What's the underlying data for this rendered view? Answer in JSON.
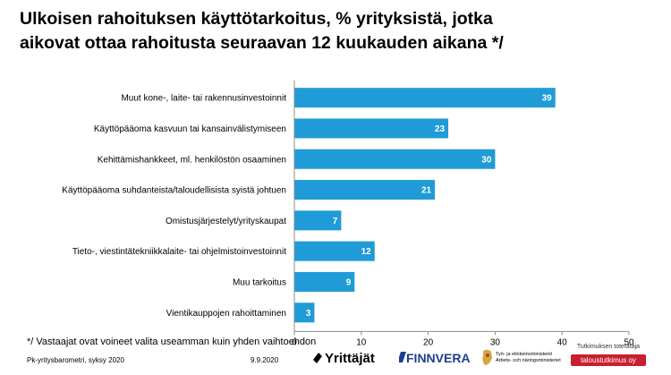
{
  "title_line1": "Ulkoisen rahoituksen käyttötarkoitus, % yrityksistä, jotka",
  "title_line2": "aikovat ottaa rahoitusta seuraavan 12 kuukauden aikana */",
  "chart_data": {
    "type": "bar",
    "orientation": "horizontal",
    "categories": [
      "Muut kone-, laite- tai rakennusinvestoinnit",
      "Käyttöpääoma kasvuun tai kansainvälistymiseen",
      "Kehittämishankkeet, ml. henkilöstön osaaminen",
      "Käyttöpääoma suhdanteista/taloudellisista syistä johtuen",
      "Omistusjärjestelyt/yrityskaupat",
      "Tieto-, viestintätekniikkalaite- tai ohjelmistoinvestoinnit",
      "Muu tarkoitus",
      "Vientikauppojen rahoittaminen"
    ],
    "values": [
      39,
      23,
      30,
      21,
      7,
      12,
      9,
      3
    ],
    "xlim": [
      0,
      50
    ],
    "xticks": [
      "0",
      "10",
      "20",
      "30",
      "40",
      "50"
    ],
    "bar_color": "#1f9bd7",
    "grid": false,
    "legend": "none"
  },
  "footnote": "*/ Vastaajat ovat voineet valita useamman kuin yhden vaihtoehdon",
  "footer": {
    "source": "Pk-yritysbarometri, syksy 2020",
    "date": "9.9.2020",
    "logo_yrittajat": "Yrittäjät",
    "logo_finnvera": "FINNVERA",
    "logo_tem_line1": "Työ- ja elinkeinoministeriö",
    "logo_tem_line2": "Arbets- och näringsministeriet",
    "credit": "Tutkimuksen toteuttaja",
    "badge": "taloustutkimus oy"
  },
  "colors": {
    "bar": "#1f9bd7",
    "finnvera": "#1b3f8f",
    "badge": "#c8202f"
  }
}
